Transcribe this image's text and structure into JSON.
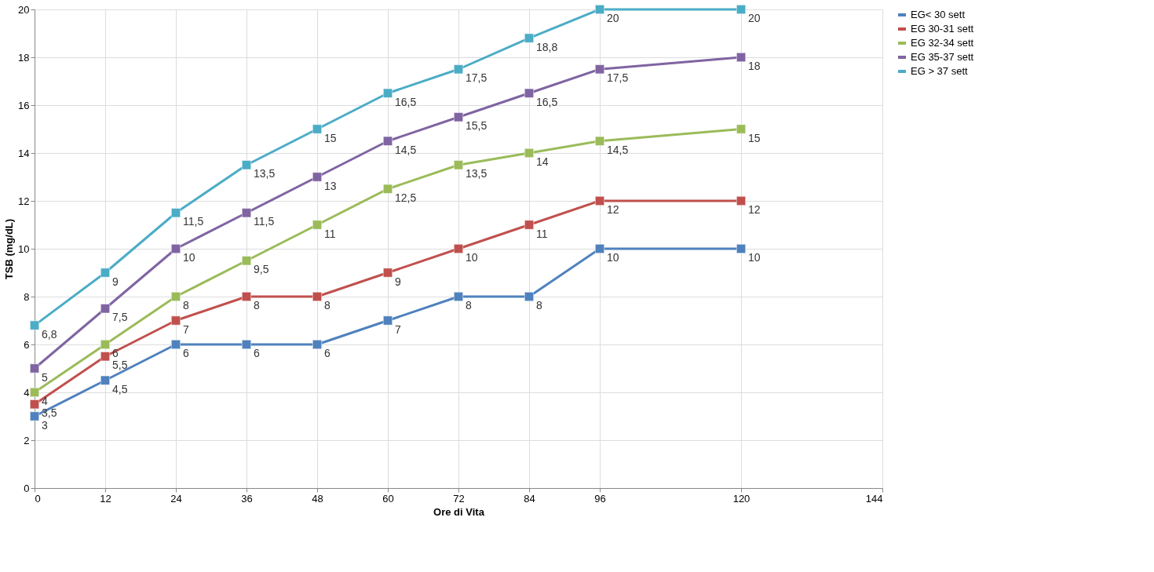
{
  "chart_data": {
    "type": "line",
    "xlabel": "Ore di Vita",
    "ylabel": "TSB (mg/dL)",
    "x": [
      0,
      12,
      24,
      36,
      48,
      60,
      72,
      84,
      96,
      120
    ],
    "xlim": [
      0,
      144
    ],
    "xticks": [
      0,
      12,
      24,
      36,
      48,
      60,
      72,
      84,
      96,
      120,
      144
    ],
    "ylim": [
      0,
      20
    ],
    "yticks": [
      0,
      2,
      4,
      6,
      8,
      10,
      12,
      14,
      16,
      18,
      20
    ],
    "grid": true,
    "legend": "right",
    "marker": "square",
    "line_style": "solid",
    "series": [
      {
        "name": "EG< 30 sett",
        "color": "#4f81bd",
        "values": [
          3,
          4.5,
          6,
          6,
          6,
          7,
          8,
          8,
          10,
          10
        ],
        "value_labels": [
          "3",
          "4,5",
          "6",
          "6",
          "6",
          "7",
          "8",
          "8",
          "10",
          "10"
        ]
      },
      {
        "name": "EG 30-31 sett",
        "color": "#c0504d",
        "values": [
          3.5,
          5.5,
          7,
          8,
          8,
          9,
          10,
          11,
          12,
          12
        ],
        "value_labels": [
          "3,5",
          "5,5",
          "7",
          "8",
          "8",
          "9",
          "10",
          "11",
          "12",
          "12"
        ]
      },
      {
        "name": "EG 32-34 sett",
        "color": "#9bbb59",
        "values": [
          4,
          6,
          8,
          9.5,
          11,
          12.5,
          13.5,
          14,
          14.5,
          15
        ],
        "value_labels": [
          "4",
          "6",
          "8",
          "9,5",
          "11",
          "12,5",
          "13,5",
          "14",
          "14,5",
          "15"
        ]
      },
      {
        "name": "EG 35-37 sett",
        "color": "#8064a2",
        "values": [
          5,
          7.5,
          10,
          11.5,
          13,
          14.5,
          15.5,
          16.5,
          17.5,
          18
        ],
        "value_labels": [
          "5",
          "7,5",
          "10",
          "11,5",
          "13",
          "14,5",
          "15,5",
          "16,5",
          "17,5",
          "18"
        ]
      },
      {
        "name": "EG > 37 sett",
        "color": "#4bacc6",
        "values": [
          6.8,
          9,
          11.5,
          13.5,
          15,
          16.5,
          17.5,
          18.8,
          20,
          20
        ],
        "value_labels": [
          "6,8",
          "9",
          "11,5",
          "13,5",
          "15",
          "16,5",
          "17,5",
          "18,8",
          "20",
          "20"
        ]
      }
    ]
  }
}
